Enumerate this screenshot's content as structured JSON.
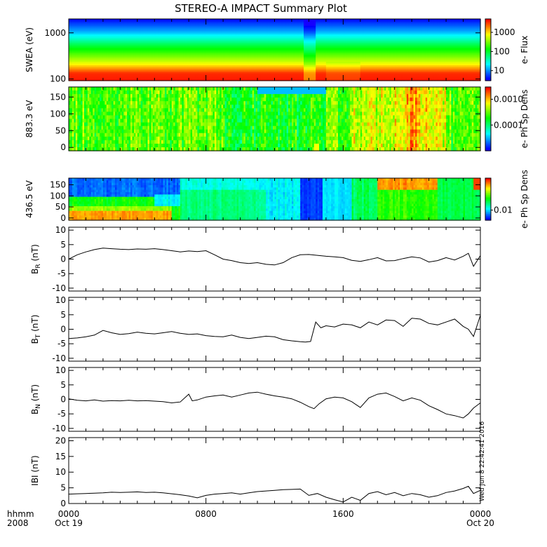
{
  "title": "STEREO-A IMPACT Summary Plot",
  "timestamp": "Wed Jun  8 22:42:41 2016",
  "x_axis": {
    "row1_label": "hhmm",
    "row2_label": "2008",
    "ticks": [
      {
        "t": 0,
        "time": "0000",
        "date": "Oct 19"
      },
      {
        "t": 8,
        "time": "0800",
        "date": ""
      },
      {
        "t": 16,
        "time": "1600",
        "date": ""
      },
      {
        "t": 24,
        "time": "0000",
        "date": "Oct 20"
      }
    ]
  },
  "colors": {
    "line": "#000000",
    "background": "#ffffff"
  },
  "chart_data": [
    {
      "type": "heatmap",
      "name": "swea",
      "ylabel": "SWEA (eV)",
      "yscale": "log",
      "ylim": [
        92,
        2000
      ],
      "yticks": [
        {
          "v": 1000,
          "label": "1000"
        },
        {
          "v": 100,
          "label": "100"
        }
      ],
      "colorbar": {
        "label": "e- Flux",
        "scale": "log",
        "range": [
          3,
          5000
        ],
        "ticks": [
          {
            "v": 1000,
            "label": "1000"
          },
          {
            "v": 100,
            "label": "100"
          },
          {
            "v": 10,
            "label": "10"
          }
        ]
      }
    },
    {
      "type": "heatmap",
      "name": "pad883",
      "ylabel": "883.3 eV",
      "ylim": [
        -10,
        180
      ],
      "yticks": [
        {
          "v": 0,
          "label": "0"
        },
        {
          "v": 50,
          "label": "50"
        },
        {
          "v": 100,
          "label": "100"
        },
        {
          "v": 150,
          "label": "150"
        }
      ],
      "colorbar": {
        "label": "e- Ph Sp Dens",
        "scale": "log",
        "range": [
          1e-05,
          0.003
        ],
        "ticks": [
          {
            "v": 0.001,
            "label": "0.0010"
          },
          {
            "v": 0.0001,
            "label": "0.0001"
          }
        ]
      }
    },
    {
      "type": "heatmap",
      "name": "pad436",
      "ylabel": "436.5 eV",
      "ylim": [
        -10,
        180
      ],
      "yticks": [
        {
          "v": 0,
          "label": "0"
        },
        {
          "v": 50,
          "label": "50"
        },
        {
          "v": 100,
          "label": "100"
        },
        {
          "v": 150,
          "label": "150"
        }
      ],
      "colorbar": {
        "label": "e- Ph Sp Dens",
        "scale": "log",
        "range": [
          0.005,
          0.09
        ],
        "ticks": [
          {
            "v": 0.01,
            "label": "0.01"
          }
        ]
      }
    },
    {
      "type": "line",
      "name": "br",
      "ylabel_main": "B",
      "ylabel_sub": "R",
      "ylabel_tail": " (nT)",
      "ylim": [
        -11,
        11
      ],
      "yticks": [
        {
          "v": -10,
          "label": "-10"
        },
        {
          "v": -5,
          "label": "-5"
        },
        {
          "v": 0,
          "label": "0"
        },
        {
          "v": 5,
          "label": "5"
        },
        {
          "v": 10,
          "label": "10"
        }
      ],
      "x": [
        0,
        0.5,
        1,
        1.5,
        2,
        2.5,
        3,
        3.5,
        4,
        4.5,
        5,
        5.5,
        6,
        6.5,
        7,
        7.5,
        8,
        8.5,
        9,
        9.5,
        10,
        10.5,
        11,
        11.5,
        12,
        12.5,
        13,
        13.5,
        14,
        14.5,
        15,
        15.5,
        16,
        16.5,
        17,
        17.5,
        18,
        18.5,
        19,
        19.5,
        20,
        20.5,
        21,
        21.5,
        22,
        22.5,
        23,
        23.3,
        23.6,
        24
      ],
      "y": [
        0,
        1.5,
        2.5,
        3.3,
        3.8,
        3.6,
        3.4,
        3.3,
        3.5,
        3.4,
        3.6,
        3.3,
        2.9,
        2.5,
        2.8,
        2.6,
        2.9,
        1.5,
        0,
        -0.5,
        -1.2,
        -1.5,
        -1.2,
        -1.8,
        -2.0,
        -1.2,
        0.5,
        1.5,
        1.6,
        1.3,
        1.0,
        0.8,
        0.5,
        -0.4,
        -0.8,
        -0.2,
        0.5,
        -0.6,
        -0.5,
        0.2,
        0.8,
        0.4,
        -1.0,
        -0.5,
        0.5,
        -0.3,
        1.0,
        2.0,
        -2.5,
        1.2
      ]
    },
    {
      "type": "line",
      "name": "bt",
      "ylabel_main": "B",
      "ylabel_sub": "T",
      "ylabel_tail": " (nT)",
      "ylim": [
        -11,
        11
      ],
      "yticks": [
        {
          "v": -10,
          "label": "-10"
        },
        {
          "v": -5,
          "label": "-5"
        },
        {
          "v": 0,
          "label": "0"
        },
        {
          "v": 5,
          "label": "5"
        },
        {
          "v": 10,
          "label": "10"
        }
      ],
      "x": [
        0,
        0.5,
        1,
        1.5,
        2,
        2.5,
        3,
        3.5,
        4,
        4.5,
        5,
        5.5,
        6,
        6.5,
        7,
        7.5,
        8,
        8.5,
        9,
        9.5,
        10,
        10.5,
        11,
        11.5,
        12,
        12.5,
        13,
        13.5,
        13.8,
        14.1,
        14.4,
        14.7,
        15,
        15.5,
        16,
        16.5,
        17,
        17.5,
        18,
        18.5,
        19,
        19.5,
        20,
        20.5,
        21,
        21.5,
        22,
        22.5,
        23,
        23.3,
        23.6,
        24
      ],
      "y": [
        -3.2,
        -3.0,
        -2.6,
        -2.0,
        -0.4,
        -1.2,
        -1.8,
        -1.5,
        -1.0,
        -1.4,
        -1.6,
        -1.2,
        -0.8,
        -1.4,
        -1.8,
        -1.6,
        -2.2,
        -2.5,
        -2.6,
        -2.0,
        -2.8,
        -3.2,
        -2.8,
        -2.4,
        -2.6,
        -3.6,
        -4.0,
        -4.3,
        -4.4,
        -4.2,
        2.5,
        0.5,
        1.2,
        0.8,
        1.8,
        1.5,
        0.5,
        2.5,
        1.5,
        3.2,
        3.0,
        1.0,
        3.8,
        3.5,
        2.0,
        1.5,
        2.5,
        3.5,
        1.0,
        0,
        -2.5,
        4.8
      ]
    },
    {
      "type": "line",
      "name": "bn",
      "ylabel_main": "B",
      "ylabel_sub": "N",
      "ylabel_tail": " (nT)",
      "ylim": [
        -11,
        11
      ],
      "yticks": [
        {
          "v": -10,
          "label": "-10"
        },
        {
          "v": -5,
          "label": "-5"
        },
        {
          "v": 0,
          "label": "0"
        },
        {
          "v": 5,
          "label": "5"
        },
        {
          "v": 10,
          "label": "10"
        }
      ],
      "x": [
        0,
        0.5,
        1,
        1.5,
        2,
        2.5,
        3,
        3.5,
        4,
        4.5,
        5,
        5.5,
        6,
        6.5,
        7,
        7.2,
        7.5,
        8,
        8.5,
        9,
        9.5,
        10,
        10.5,
        11,
        11.5,
        12,
        12.5,
        13,
        13.5,
        14,
        14.3,
        14.6,
        15,
        15.5,
        16,
        16.5,
        17,
        17.5,
        18,
        18.5,
        19,
        19.5,
        20,
        20.5,
        21,
        21.5,
        22,
        22.5,
        23,
        23.3,
        23.6,
        24
      ],
      "y": [
        0.2,
        -0.3,
        -0.5,
        -0.2,
        -0.6,
        -0.4,
        -0.5,
        -0.3,
        -0.5,
        -0.4,
        -0.6,
        -0.8,
        -1.2,
        -0.9,
        1.8,
        -0.5,
        -0.2,
        0.8,
        1.2,
        1.5,
        0.8,
        1.5,
        2.2,
        2.5,
        1.8,
        1.2,
        0.8,
        0.2,
        -1.0,
        -2.5,
        -3.2,
        -1.5,
        0.2,
        0.8,
        0.5,
        -0.8,
        -2.8,
        0.5,
        1.8,
        2.2,
        1.0,
        -0.5,
        0.5,
        -0.3,
        -2.2,
        -3.5,
        -5.0,
        -5.6,
        -6.4,
        -5.0,
        -3.0,
        -1.2
      ]
    },
    {
      "type": "line",
      "name": "bmag",
      "ylabel_main": "IBI",
      "ylabel_sub": "",
      "ylabel_tail": " (nT)",
      "ylim": [
        0,
        21
      ],
      "yticks": [
        {
          "v": 0,
          "label": "0"
        },
        {
          "v": 5,
          "label": "5"
        },
        {
          "v": 10,
          "label": "10"
        },
        {
          "v": 15,
          "label": "15"
        },
        {
          "v": 20,
          "label": "20"
        }
      ],
      "x": [
        0,
        0.5,
        1,
        1.5,
        2,
        2.5,
        3,
        3.5,
        4,
        4.5,
        5,
        5.5,
        6,
        6.5,
        7,
        7.5,
        8,
        8.5,
        9,
        9.5,
        10,
        10.5,
        11,
        11.5,
        12,
        12.5,
        13,
        13.5,
        14,
        14.5,
        15,
        15.5,
        16,
        16.5,
        17,
        17.5,
        18,
        18.5,
        19,
        19.5,
        20,
        20.5,
        21,
        21.5,
        22,
        22.5,
        23,
        23.3,
        23.6,
        24
      ],
      "y": [
        3.0,
        3.1,
        3.2,
        3.3,
        3.4,
        3.6,
        3.5,
        3.6,
        3.7,
        3.5,
        3.6,
        3.4,
        3.1,
        2.8,
        2.4,
        1.8,
        2.6,
        3.0,
        3.2,
        3.4,
        3.0,
        3.4,
        3.8,
        4.0,
        4.2,
        4.4,
        4.5,
        4.6,
        2.6,
        3.2,
        2.0,
        1.2,
        0.5,
        2.0,
        1.0,
        3.2,
        3.8,
        2.8,
        3.5,
        2.5,
        3.2,
        2.8,
        2.0,
        2.5,
        3.5,
        4.0,
        4.8,
        5.5,
        3.2,
        4.2
      ]
    }
  ]
}
